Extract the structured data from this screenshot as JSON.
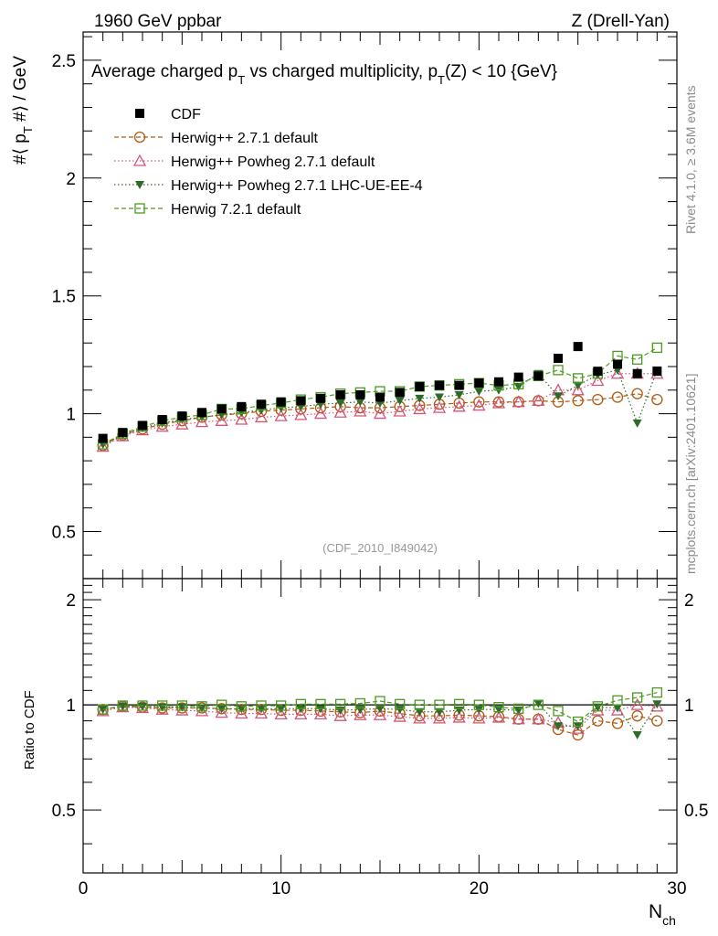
{
  "header": {
    "energy_label": "1960 GeV ppbar",
    "process_label": "Z (Drell-Yan)"
  },
  "side_labels": {
    "rivet": "Rivet 4.1.0, ≥ 3.6M events",
    "mcplots": "mcplots.cern.ch [arXiv:2401.10621]"
  },
  "chart_data": [
    {
      "type": "scatter",
      "title": "Average charged p_T vs charged multiplicity, p_T(Z) < 10 {GeV}",
      "title_parts": {
        "a": "Average charged p",
        "sub1": "T",
        "b": " vs charged multiplicity, p",
        "sub2": "T",
        "c": "(Z) < 10 {GeV}"
      },
      "ylabel": "#⟨ p_T #⟩ / GeV",
      "ylabel_parts": {
        "a": "#⟨ p",
        "sub": "T",
        "b": " #⟩ / GeV"
      },
      "xlabel": "N_ch",
      "xlabel_parts": {
        "main": "N",
        "sub": "ch"
      },
      "watermark": "(CDF_2010_I849042)",
      "xlim": [
        0,
        30
      ],
      "ylim": [
        0.3,
        2.62
      ],
      "yticks": [
        0.5,
        1,
        1.5,
        2,
        2.5
      ],
      "ytick_labels": [
        "0.5",
        "1",
        "1.5",
        "2",
        "2.5"
      ],
      "xticks": [
        0,
        10,
        20,
        30
      ],
      "xtick_labels": [
        "0",
        "10",
        "20",
        "30"
      ],
      "legend_position": "top-left",
      "x": [
        1,
        2,
        3,
        4,
        5,
        6,
        7,
        8,
        9,
        10,
        11,
        12,
        13,
        14,
        15,
        16,
        17,
        18,
        19,
        20,
        21,
        22,
        23,
        24,
        25,
        26,
        27,
        28,
        29
      ],
      "series": [
        {
          "name": "CDF",
          "color": "#000000",
          "marker": "square-filled",
          "line": "none",
          "values": [
            0.895,
            0.92,
            0.95,
            0.975,
            0.99,
            1.005,
            1.02,
            1.03,
            1.04,
            1.05,
            1.055,
            1.065,
            1.08,
            1.08,
            1.07,
            1.09,
            1.115,
            1.12,
            1.12,
            1.13,
            1.135,
            1.155,
            1.16,
            1.235,
            1.285,
            1.18,
            1.21,
            1.17,
            1.18
          ]
        },
        {
          "name": "Herwig++ 2.7.1 default",
          "color": "#b05a10",
          "marker": "circle-open",
          "line": "dashed",
          "values": [
            0.865,
            0.91,
            0.935,
            0.955,
            0.97,
            0.985,
            0.995,
            1.0,
            1.01,
            1.015,
            1.02,
            1.025,
            1.03,
            1.025,
            1.025,
            1.03,
            1.035,
            1.04,
            1.045,
            1.05,
            1.05,
            1.05,
            1.055,
            1.05,
            1.055,
            1.06,
            1.07,
            1.085,
            1.06
          ]
        },
        {
          "name": "Herwig++ Powheg 2.7.1 default",
          "color": "#d4537a",
          "marker": "triangle-open",
          "line": "dotted",
          "values": [
            0.86,
            0.905,
            0.93,
            0.945,
            0.955,
            0.965,
            0.97,
            0.975,
            0.985,
            0.99,
            0.995,
            1.0,
            1.005,
            1.01,
            1.0,
            1.01,
            1.02,
            1.025,
            1.03,
            1.035,
            1.045,
            1.05,
            1.055,
            1.1,
            1.1,
            1.14,
            1.17,
            1.17,
            1.17
          ]
        },
        {
          "name": "Herwig++ Powheg 2.7.1 LHC-UE-EE-4",
          "color": "#2e6b2a",
          "marker": "triangle-down-filled",
          "line": "dotted",
          "values": [
            0.87,
            0.91,
            0.94,
            0.96,
            0.975,
            0.985,
            0.995,
            1.005,
            1.015,
            1.025,
            1.03,
            1.04,
            1.045,
            1.05,
            1.045,
            1.055,
            1.065,
            1.07,
            1.08,
            1.095,
            1.1,
            1.115,
            1.17,
            1.075,
            1.12,
            1.165,
            1.185,
            0.96,
            1.185
          ]
        },
        {
          "name": "Herwig 7.2.1 default",
          "color": "#4c9a1f",
          "marker": "square-open",
          "line": "dashed",
          "values": [
            0.87,
            0.915,
            0.945,
            0.97,
            0.985,
            0.995,
            1.02,
            1.02,
            1.035,
            1.045,
            1.06,
            1.07,
            1.085,
            1.09,
            1.095,
            1.095,
            1.115,
            1.12,
            1.125,
            1.13,
            1.12,
            1.125,
            1.16,
            1.185,
            1.15,
            1.17,
            1.245,
            1.23,
            1.28
          ]
        }
      ]
    },
    {
      "type": "scatter",
      "ylabel": "Ratio to CDF",
      "xlim": [
        0,
        30
      ],
      "ylim": [
        0.33,
        2.3
      ],
      "yticks": [
        0.5,
        1,
        2
      ],
      "ytick_labels": [
        "0.5",
        "1",
        "2"
      ],
      "reference_line": 1,
      "x": [
        1,
        2,
        3,
        4,
        5,
        6,
        7,
        8,
        9,
        10,
        11,
        12,
        13,
        14,
        15,
        16,
        17,
        18,
        19,
        20,
        21,
        22,
        23,
        24,
        25,
        26,
        27,
        28,
        29
      ],
      "series": [
        {
          "name": "Herwig++ 2.7.1 default",
          "values": [
            0.97,
            0.99,
            0.985,
            0.98,
            0.98,
            0.98,
            0.975,
            0.97,
            0.97,
            0.965,
            0.965,
            0.96,
            0.955,
            0.95,
            0.96,
            0.945,
            0.93,
            0.93,
            0.935,
            0.93,
            0.925,
            0.91,
            0.91,
            0.85,
            0.82,
            0.9,
            0.885,
            0.93,
            0.9
          ]
        },
        {
          "name": "Herwig++ Powheg 2.7.1 default",
          "values": [
            0.96,
            0.985,
            0.98,
            0.97,
            0.965,
            0.96,
            0.95,
            0.945,
            0.945,
            0.94,
            0.94,
            0.94,
            0.93,
            0.935,
            0.935,
            0.925,
            0.915,
            0.915,
            0.92,
            0.915,
            0.92,
            0.91,
            0.91,
            0.89,
            0.855,
            0.965,
            0.965,
            1.0,
            0.99
          ]
        },
        {
          "name": "Herwig++ Powheg 2.7.1 LHC-UE-EE-4",
          "values": [
            0.97,
            0.99,
            0.99,
            0.985,
            0.985,
            0.98,
            0.975,
            0.975,
            0.975,
            0.975,
            0.975,
            0.975,
            0.965,
            0.97,
            0.975,
            0.97,
            0.955,
            0.955,
            0.965,
            0.97,
            0.97,
            0.965,
            1.01,
            0.87,
            0.87,
            0.985,
            0.98,
            0.82,
            1.005
          ]
        },
        {
          "name": "Herwig 7.2.1 default",
          "values": [
            0.97,
            0.995,
            0.995,
            0.995,
            0.995,
            0.99,
            1.0,
            0.99,
            0.995,
            0.995,
            1.005,
            1.005,
            1.005,
            1.01,
            1.025,
            1.005,
            1.0,
            1.0,
            1.005,
            1.0,
            0.985,
            0.975,
            1.0,
            0.96,
            0.895,
            0.99,
            1.03,
            1.05,
            1.085
          ]
        }
      ]
    }
  ]
}
